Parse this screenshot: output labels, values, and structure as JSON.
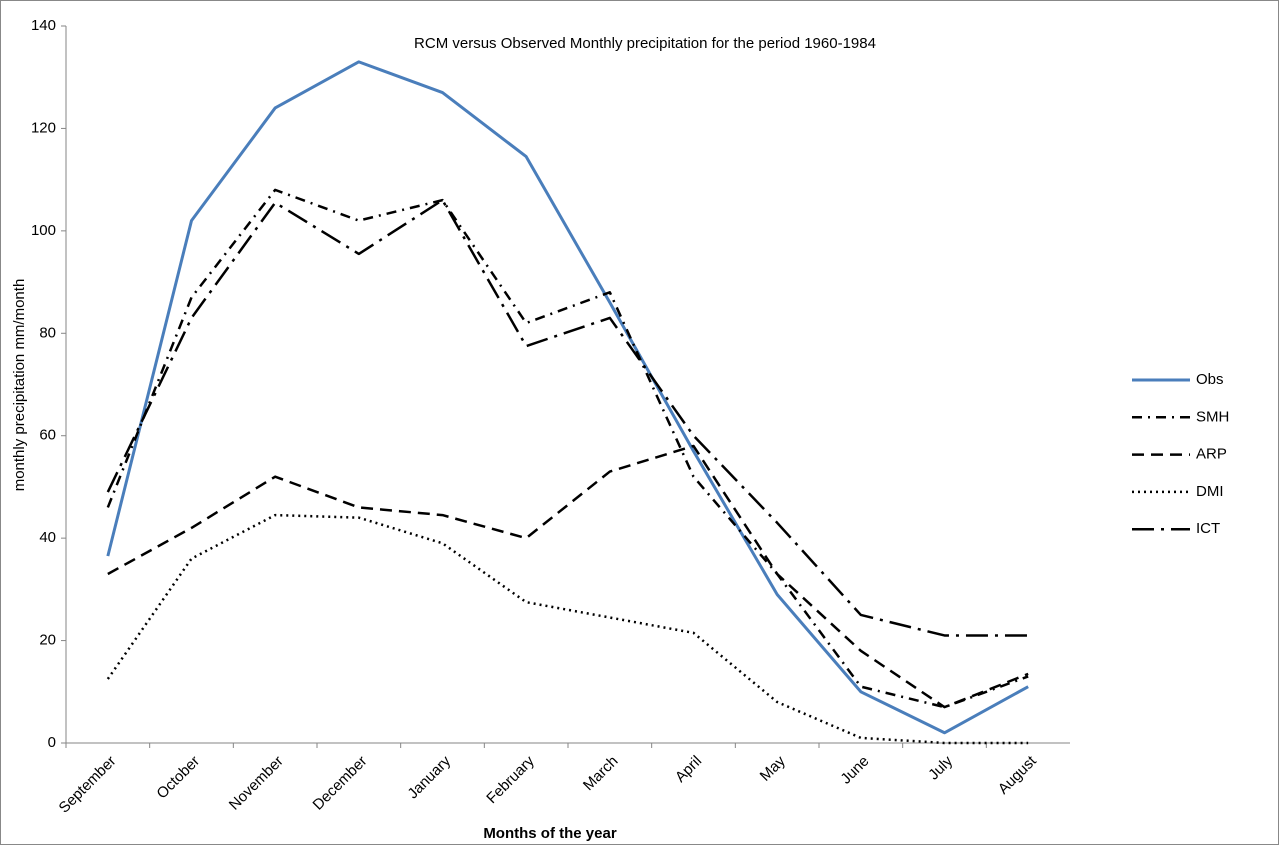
{
  "chart_data": {
    "type": "line",
    "title": "RCM versus Observed Monthly precipitation for the period 1960-1984",
    "x_label": "Months of the year",
    "y_label": "monthly precipitation mm/month",
    "categories": [
      "September",
      "October",
      "November",
      "December",
      "January",
      "February",
      "March",
      "April",
      "May",
      "June",
      "July",
      "August"
    ],
    "series": [
      {
        "name": "Obs",
        "color": "#4a7ebb",
        "dash": "",
        "values": [
          36.5,
          102,
          124,
          133,
          127,
          114.5,
          86,
          57,
          29,
          10,
          2,
          11
        ]
      },
      {
        "name": "SMH",
        "color": "#000000",
        "dash": "10,6,2,6",
        "values": [
          46,
          87,
          108,
          102,
          106,
          82,
          88,
          52,
          33,
          11,
          7,
          13
        ]
      },
      {
        "name": "ARP",
        "color": "#000000",
        "dash": "12,7",
        "values": [
          33,
          42,
          52,
          46,
          44.5,
          40,
          53,
          58,
          33,
          18,
          7,
          13.5
        ]
      },
      {
        "name": "DMI",
        "color": "#000000",
        "dash": "2,4",
        "values": [
          12.5,
          36,
          44.5,
          44,
          39,
          27.5,
          24.5,
          21.5,
          8,
          1,
          0,
          0
        ]
      },
      {
        "name": "ICT",
        "color": "#000000",
        "dash": "22,7,3,7",
        "values": [
          49,
          83,
          105.5,
          95.5,
          106,
          77.5,
          83,
          60,
          43,
          25,
          21,
          21
        ]
      }
    ],
    "ylim": [
      0,
      140
    ],
    "yticks": [
      0,
      20,
      40,
      60,
      80,
      100,
      120,
      140
    ],
    "legend": "right"
  }
}
